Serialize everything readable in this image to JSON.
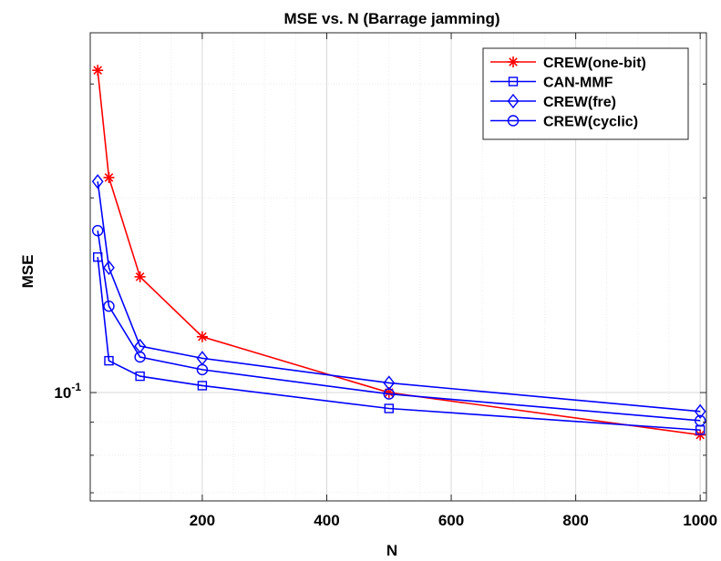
{
  "chart_data": {
    "type": "line",
    "title": "MSE vs. N (Barrage jamming)",
    "xlabel": "N",
    "ylabel": "MSE",
    "x_scale": "linear",
    "y_scale": "log",
    "xlim": [
      20,
      1010
    ],
    "ylim": [
      0.068,
      0.36
    ],
    "x_ticks": [
      200,
      400,
      600,
      800,
      1000
    ],
    "x_tick_labels": [
      "200",
      "400",
      "600",
      "800",
      "1000"
    ],
    "y_ticks": [
      0.1
    ],
    "y_tick_labels": [
      {
        "base": "10",
        "exp": "-1"
      }
    ],
    "grid": true,
    "legend_position": "top-right",
    "x": [
      32,
      50,
      100,
      200,
      500,
      1000
    ],
    "series": [
      {
        "name": "CREW(one-bit)",
        "color": "#ff0000",
        "marker": "asterisk",
        "values": [
          0.315,
          0.215,
          0.151,
          0.122,
          0.1,
          0.086
        ]
      },
      {
        "name": "CAN-MMF",
        "color": "#0000ff",
        "marker": "square",
        "values": [
          0.162,
          0.112,
          0.106,
          0.1025,
          0.0945,
          0.0875
        ]
      },
      {
        "name": "CREW(fre)",
        "color": "#0000ff",
        "marker": "diamond",
        "values": [
          0.212,
          0.156,
          0.118,
          0.113,
          0.1035,
          0.0935
        ]
      },
      {
        "name": "CREW(cyclic)",
        "color": "#0000ff",
        "marker": "circle",
        "values": [
          0.178,
          0.136,
          0.1135,
          0.1085,
          0.0995,
          0.0905
        ]
      }
    ]
  }
}
